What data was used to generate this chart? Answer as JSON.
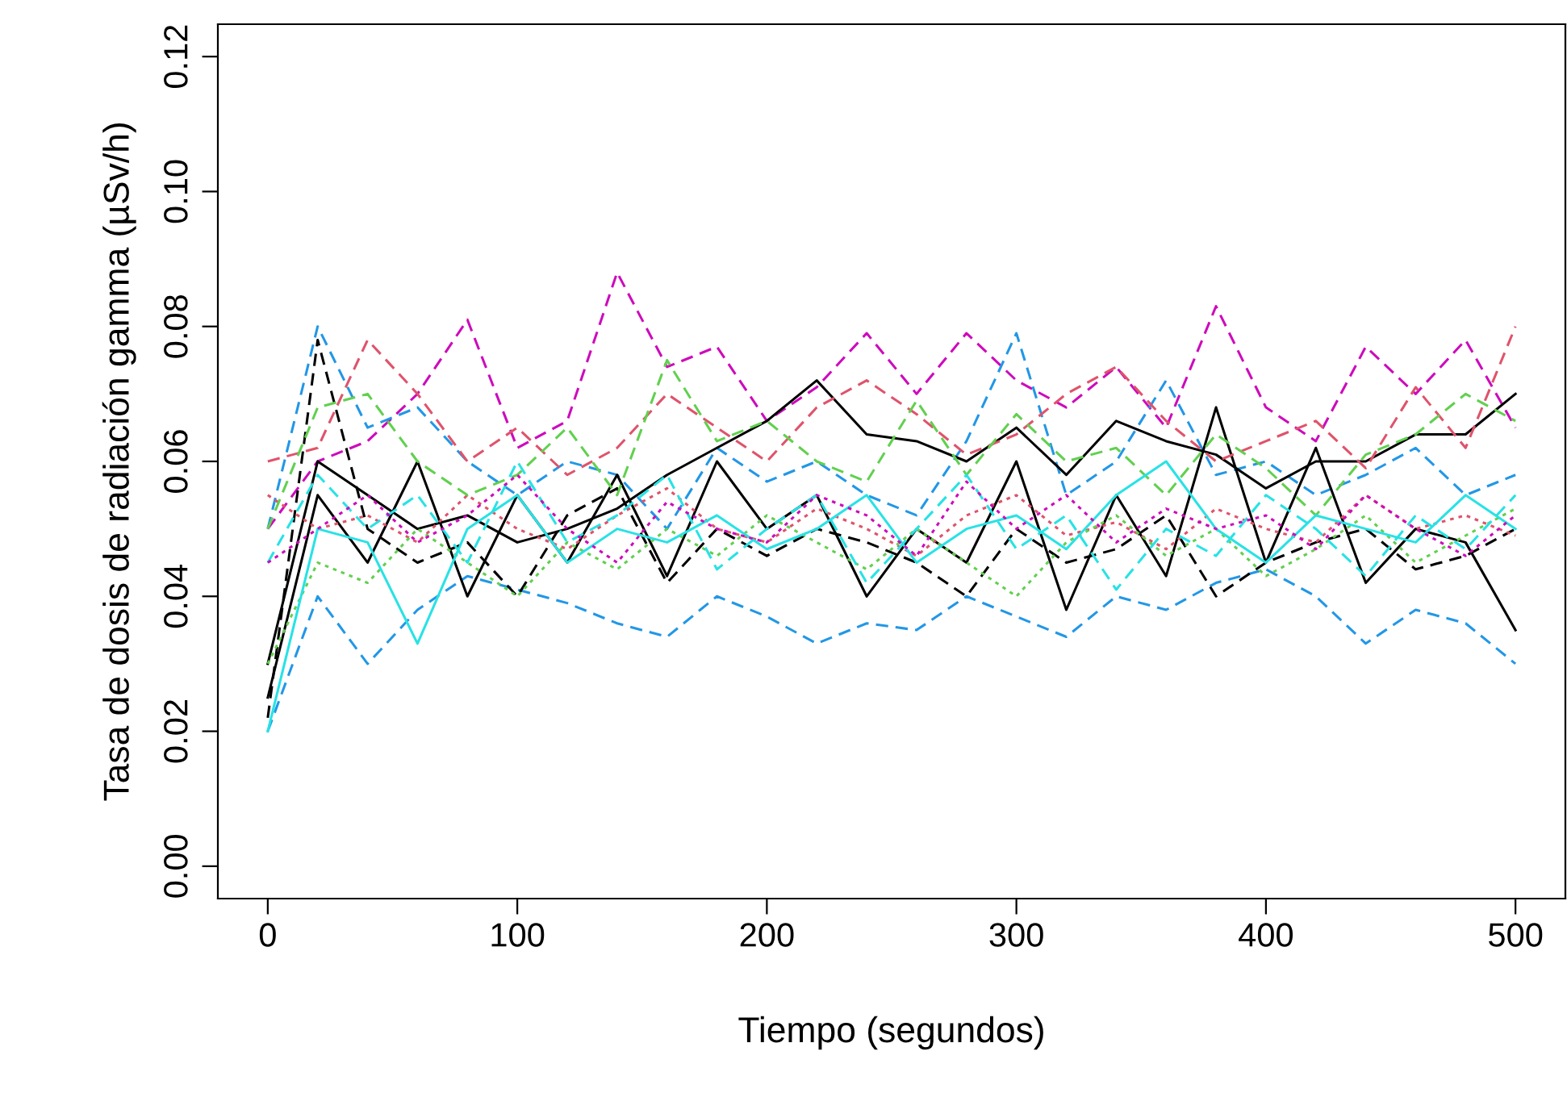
{
  "chart_data": {
    "type": "line",
    "xlabel": "Tiempo (segundos)",
    "ylabel": "Tasa de dosis de radiación gamma (µSv/h)",
    "x": [
      0,
      20,
      40,
      60,
      80,
      100,
      120,
      140,
      160,
      180,
      200,
      220,
      240,
      260,
      280,
      300,
      320,
      340,
      360,
      380,
      400,
      420,
      440,
      460,
      480,
      500
    ],
    "xlim": [
      -20,
      520
    ],
    "xticks": [
      0,
      100,
      200,
      300,
      400,
      500
    ],
    "ylim": [
      -0.0048,
      0.1248
    ],
    "yticks": [
      {
        "value": 0,
        "label": "0.00"
      },
      {
        "value": 0.02,
        "label": "0.02"
      },
      {
        "value": 0.04,
        "label": "0.04"
      },
      {
        "value": 0.06,
        "label": "0.06"
      },
      {
        "value": 0.08,
        "label": "0.08"
      },
      {
        "value": 0.1,
        "label": "0.10"
      },
      {
        "value": 0.12,
        "label": "0.12"
      }
    ],
    "grid": false,
    "legend": false,
    "series": [
      {
        "color": "#cd0bbc",
        "line_style": "dashed",
        "values": [
          0.05,
          0.06,
          0.063,
          0.07,
          0.081,
          0.062,
          0.066,
          0.088,
          0.074,
          0.077,
          0.066,
          0.071,
          0.079,
          0.07,
          0.079,
          0.072,
          0.068,
          0.074,
          0.065,
          0.083,
          0.068,
          0.063,
          0.077,
          0.07,
          0.078,
          0.065
        ]
      },
      {
        "color": "#2297e6",
        "line_style": "dashed",
        "values": [
          0.02,
          0.04,
          0.03,
          0.038,
          0.043,
          0.041,
          0.039,
          0.036,
          0.034,
          0.04,
          0.037,
          0.033,
          0.036,
          0.035,
          0.04,
          0.037,
          0.034,
          0.04,
          0.038,
          0.042,
          0.044,
          0.04,
          0.033,
          0.038,
          0.036,
          0.03
        ]
      },
      {
        "color": "#2297e6",
        "line_style": "dashed",
        "values": [
          0.05,
          0.08,
          0.065,
          0.068,
          0.06,
          0.055,
          0.06,
          0.058,
          0.05,
          0.062,
          0.057,
          0.06,
          0.055,
          0.052,
          0.063,
          0.079,
          0.055,
          0.06,
          0.072,
          0.058,
          0.06,
          0.055,
          0.058,
          0.062,
          0.055,
          0.058
        ]
      },
      {
        "color": "#000000",
        "line_style": "solid",
        "values": [
          0.03,
          0.06,
          0.055,
          0.05,
          0.052,
          0.048,
          0.05,
          0.053,
          0.058,
          0.062,
          0.066,
          0.072,
          0.064,
          0.063,
          0.06,
          0.065,
          0.058,
          0.066,
          0.063,
          0.061,
          0.056,
          0.06,
          0.06,
          0.064,
          0.064,
          0.07
        ]
      },
      {
        "color": "#000000",
        "line_style": "solid",
        "values": [
          0.025,
          0.055,
          0.045,
          0.06,
          0.04,
          0.055,
          0.045,
          0.058,
          0.043,
          0.06,
          0.05,
          0.055,
          0.04,
          0.05,
          0.045,
          0.06,
          0.038,
          0.055,
          0.043,
          0.068,
          0.045,
          0.062,
          0.042,
          0.05,
          0.048,
          0.035
        ]
      },
      {
        "color": "#000000",
        "line_style": "dashed",
        "values": [
          0.022,
          0.078,
          0.05,
          0.045,
          0.048,
          0.04,
          0.052,
          0.056,
          0.042,
          0.05,
          0.046,
          0.05,
          0.048,
          0.045,
          0.04,
          0.05,
          0.045,
          0.047,
          0.052,
          0.04,
          0.045,
          0.048,
          0.05,
          0.044,
          0.046,
          0.05
        ]
      },
      {
        "color": "#df536b",
        "line_style": "dashed",
        "values": [
          0.06,
          0.062,
          0.078,
          0.07,
          0.06,
          0.065,
          0.058,
          0.062,
          0.07,
          0.065,
          0.06,
          0.068,
          0.072,
          0.067,
          0.061,
          0.064,
          0.07,
          0.074,
          0.066,
          0.06,
          0.063,
          0.066,
          0.059,
          0.071,
          0.062,
          0.08
        ]
      },
      {
        "color": "#df536b",
        "line_style": "dotted",
        "values": [
          0.055,
          0.05,
          0.052,
          0.048,
          0.055,
          0.05,
          0.047,
          0.052,
          0.056,
          0.05,
          0.048,
          0.053,
          0.05,
          0.046,
          0.052,
          0.055,
          0.049,
          0.051,
          0.047,
          0.053,
          0.05,
          0.048,
          0.055,
          0.05,
          0.052,
          0.049
        ]
      },
      {
        "color": "#61d04f",
        "line_style": "dashed",
        "values": [
          0.05,
          0.068,
          0.07,
          0.06,
          0.055,
          0.058,
          0.065,
          0.055,
          0.075,
          0.063,
          0.066,
          0.06,
          0.057,
          0.069,
          0.058,
          0.067,
          0.06,
          0.062,
          0.055,
          0.064,
          0.059,
          0.052,
          0.061,
          0.064,
          0.07,
          0.066
        ]
      },
      {
        "color": "#61d04f",
        "line_style": "dotted",
        "values": [
          0.03,
          0.045,
          0.042,
          0.05,
          0.045,
          0.04,
          0.048,
          0.044,
          0.05,
          0.046,
          0.052,
          0.048,
          0.044,
          0.05,
          0.045,
          0.04,
          0.048,
          0.052,
          0.046,
          0.05,
          0.043,
          0.047,
          0.052,
          0.045,
          0.049,
          0.053
        ]
      },
      {
        "color": "#28e2e5",
        "line_style": "solid",
        "values": [
          0.02,
          0.05,
          0.048,
          0.033,
          0.05,
          0.055,
          0.045,
          0.05,
          0.048,
          0.052,
          0.047,
          0.05,
          0.055,
          0.045,
          0.05,
          0.052,
          0.047,
          0.055,
          0.06,
          0.05,
          0.045,
          0.052,
          0.05,
          0.048,
          0.055,
          0.05
        ]
      },
      {
        "color": "#28e2e5",
        "line_style": "dashed",
        "values": [
          0.045,
          0.058,
          0.05,
          0.055,
          0.045,
          0.06,
          0.048,
          0.052,
          0.058,
          0.044,
          0.05,
          0.055,
          0.042,
          0.05,
          0.058,
          0.047,
          0.052,
          0.041,
          0.05,
          0.046,
          0.055,
          0.05,
          0.043,
          0.052,
          0.047,
          0.055
        ]
      },
      {
        "color": "#cd0bbc",
        "line_style": "dotted",
        "values": [
          0.045,
          0.05,
          0.055,
          0.048,
          0.052,
          0.058,
          0.05,
          0.045,
          0.054,
          0.05,
          0.048,
          0.055,
          0.052,
          0.046,
          0.057,
          0.05,
          0.055,
          0.048,
          0.053,
          0.05,
          0.052,
          0.047,
          0.055,
          0.05,
          0.046,
          0.052
        ]
      }
    ]
  }
}
